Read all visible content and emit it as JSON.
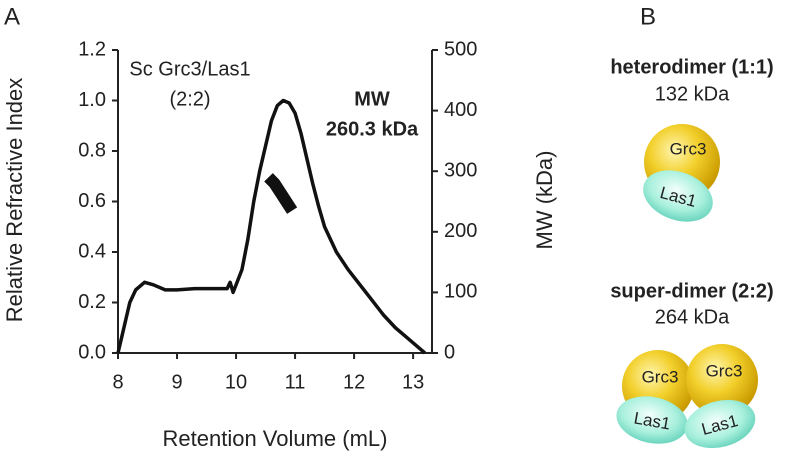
{
  "panel_labels": [
    "A",
    "B"
  ],
  "chart_data": {
    "type": "line",
    "x_label": "Retention Volume (mL)",
    "y_label": "Relative Refractive Index",
    "y2_label": "MW (kDa)",
    "annotations": [
      "Sc Grc3/Las1",
      "(2:2)",
      "MW",
      "260.3 kDa"
    ],
    "xlim": [
      8,
      13.32
    ],
    "xticks": [
      8,
      9,
      10,
      11,
      12,
      13
    ],
    "ylim": [
      0,
      1.2
    ],
    "yticks": [
      {
        "value": 0,
        "label": "0.0"
      },
      0.2,
      0.4,
      0.6,
      0.8,
      {
        "value": 1,
        "label": "1.0"
      },
      1.2
    ],
    "y2lim": [
      0,
      500
    ],
    "y2ticks": [
      0,
      100,
      200,
      300,
      400,
      500
    ],
    "series": [
      {
        "color": "#111111",
        "x": [
          8.0,
          8.1,
          8.2,
          8.3,
          8.45,
          8.6,
          8.8,
          9.0,
          9.3,
          9.6,
          9.85,
          9.9,
          9.95,
          10.0,
          10.1,
          10.2,
          10.3,
          10.4,
          10.5,
          10.6,
          10.7,
          10.8,
          10.9,
          11.0,
          11.1,
          11.2,
          11.3,
          11.4,
          11.5,
          11.7,
          11.9,
          12.1,
          12.3,
          12.5,
          12.7,
          12.9,
          13.1,
          13.2
        ],
        "values": [
          0.0,
          0.1,
          0.2,
          0.25,
          0.28,
          0.27,
          0.25,
          0.25,
          0.255,
          0.255,
          0.255,
          0.28,
          0.24,
          0.27,
          0.33,
          0.45,
          0.6,
          0.72,
          0.82,
          0.92,
          0.98,
          1.0,
          0.99,
          0.95,
          0.87,
          0.77,
          0.67,
          0.58,
          0.5,
          0.4,
          0.33,
          0.27,
          0.21,
          0.15,
          0.1,
          0.06,
          0.02,
          0.0
        ]
      },
      {
        "color": "#111111",
        "axis": "y2",
        "x": [
          10.55,
          10.65,
          10.75,
          10.85,
          10.95
        ],
        "values": [
          290,
          280,
          265,
          250,
          235
        ]
      }
    ]
  },
  "diagram": {
    "heterodimer": {
      "title": "heterodimer (1:1)",
      "mass": "132 kDa",
      "grc3": "Grc3",
      "las1": "Las1"
    },
    "super_dimer": {
      "title": "super-dimer (2:2)",
      "mass": "264 kDa",
      "grc3": [
        "Grc3",
        "Grc3"
      ],
      "las1": [
        "Las1",
        "Las1"
      ]
    }
  }
}
